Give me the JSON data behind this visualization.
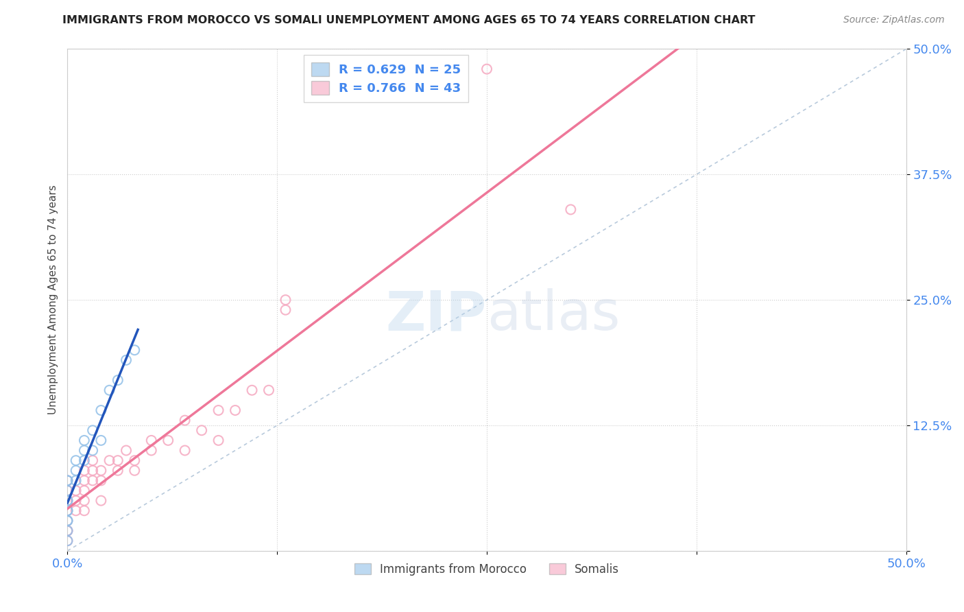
{
  "title": "IMMIGRANTS FROM MOROCCO VS SOMALI UNEMPLOYMENT AMONG AGES 65 TO 74 YEARS CORRELATION CHART",
  "source": "Source: ZipAtlas.com",
  "ylabel": "Unemployment Among Ages 65 to 74 years",
  "xlim": [
    0,
    0.5
  ],
  "ylim": [
    0,
    0.5
  ],
  "xticks": [
    0.0,
    0.125,
    0.25,
    0.375,
    0.5
  ],
  "yticks": [
    0.0,
    0.125,
    0.25,
    0.375,
    0.5
  ],
  "xticklabels": [
    "0.0%",
    "",
    "",
    "",
    "50.0%"
  ],
  "yticklabels": [
    "",
    "12.5%",
    "25.0%",
    "37.5%",
    "50.0%"
  ],
  "grid_color": "#cccccc",
  "background_color": "#ffffff",
  "watermark": "ZIPatlas",
  "legend_labels": [
    "Immigrants from Morocco",
    "Somalis"
  ],
  "morocco_color": "#92c0e8",
  "somali_color": "#f5a8c0",
  "morocco_line_color": "#2255bb",
  "somali_line_color": "#ee7799",
  "diagonal_color": "#b0c4d8",
  "tick_color": "#4488ee",
  "morocco_data": [
    [
      0.0,
      0.01
    ],
    [
      0.0,
      0.02
    ],
    [
      0.0,
      0.03
    ],
    [
      0.0,
      0.03
    ],
    [
      0.0,
      0.04
    ],
    [
      0.0,
      0.04
    ],
    [
      0.0,
      0.05
    ],
    [
      0.0,
      0.05
    ],
    [
      0.0,
      0.06
    ],
    [
      0.0,
      0.07
    ],
    [
      0.0,
      0.07
    ],
    [
      0.005,
      0.07
    ],
    [
      0.005,
      0.08
    ],
    [
      0.005,
      0.09
    ],
    [
      0.01,
      0.09
    ],
    [
      0.01,
      0.1
    ],
    [
      0.01,
      0.11
    ],
    [
      0.015,
      0.1
    ],
    [
      0.015,
      0.12
    ],
    [
      0.02,
      0.11
    ],
    [
      0.02,
      0.14
    ],
    [
      0.025,
      0.16
    ],
    [
      0.03,
      0.17
    ],
    [
      0.035,
      0.19
    ],
    [
      0.04,
      0.2
    ]
  ],
  "somali_data": [
    [
      0.0,
      0.01
    ],
    [
      0.0,
      0.02
    ],
    [
      0.0,
      0.02
    ],
    [
      0.0,
      0.03
    ],
    [
      0.0,
      0.04
    ],
    [
      0.0,
      0.05
    ],
    [
      0.0,
      0.06
    ],
    [
      0.0,
      0.07
    ],
    [
      0.005,
      0.04
    ],
    [
      0.005,
      0.05
    ],
    [
      0.005,
      0.06
    ],
    [
      0.01,
      0.04
    ],
    [
      0.01,
      0.05
    ],
    [
      0.01,
      0.06
    ],
    [
      0.01,
      0.07
    ],
    [
      0.01,
      0.08
    ],
    [
      0.015,
      0.07
    ],
    [
      0.015,
      0.08
    ],
    [
      0.015,
      0.09
    ],
    [
      0.02,
      0.05
    ],
    [
      0.02,
      0.07
    ],
    [
      0.02,
      0.08
    ],
    [
      0.025,
      0.09
    ],
    [
      0.03,
      0.08
    ],
    [
      0.03,
      0.09
    ],
    [
      0.035,
      0.1
    ],
    [
      0.04,
      0.08
    ],
    [
      0.04,
      0.09
    ],
    [
      0.05,
      0.1
    ],
    [
      0.05,
      0.11
    ],
    [
      0.06,
      0.11
    ],
    [
      0.07,
      0.1
    ],
    [
      0.07,
      0.13
    ],
    [
      0.08,
      0.12
    ],
    [
      0.09,
      0.11
    ],
    [
      0.09,
      0.14
    ],
    [
      0.1,
      0.14
    ],
    [
      0.11,
      0.16
    ],
    [
      0.12,
      0.16
    ],
    [
      0.13,
      0.24
    ],
    [
      0.13,
      0.25
    ],
    [
      0.25,
      0.48
    ],
    [
      0.3,
      0.34
    ]
  ]
}
